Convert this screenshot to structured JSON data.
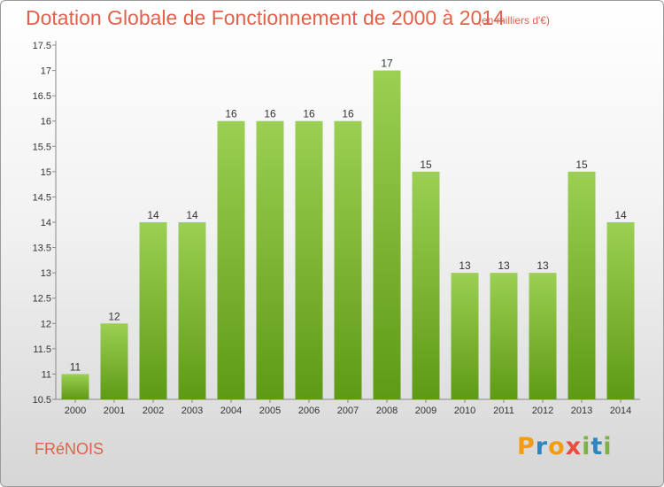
{
  "header": {
    "title": "Dotation Globale de Fonctionnement de 2000 à 2014",
    "subtitle": "(en milliers d'€)"
  },
  "footer": {
    "place": "FRéNOIS",
    "logo": "Proxiti"
  },
  "colors": {
    "bar_top": "#9bd052",
    "bar_bottom": "#5e9a16",
    "title": "#e0624b"
  },
  "chart_data": {
    "type": "bar",
    "categories": [
      "2000",
      "2001",
      "2002",
      "2003",
      "2004",
      "2005",
      "2006",
      "2007",
      "2008",
      "2009",
      "2010",
      "2011",
      "2012",
      "2013",
      "2014"
    ],
    "values": [
      11,
      12,
      14,
      14,
      16,
      16,
      16,
      16,
      17,
      15,
      13,
      13,
      13,
      15,
      14
    ],
    "data_labels": [
      "11",
      "12",
      "14",
      "14",
      "16",
      "16",
      "16",
      "16",
      "17",
      "15",
      "13",
      "13",
      "13",
      "15",
      "14"
    ],
    "ylim": [
      10.5,
      17.5
    ],
    "yticks": [
      10.5,
      11,
      11.5,
      12,
      12.5,
      13,
      13.5,
      14,
      14.5,
      15,
      15.5,
      16,
      16.5,
      17,
      17.5
    ],
    "ytick_labels": [
      "10.5",
      "11",
      "11.5",
      "12",
      "12.5",
      "13",
      "13.5",
      "14",
      "14.5",
      "15",
      "15.5",
      "16",
      "16.5",
      "17",
      "17.5"
    ],
    "grid": false,
    "title": "Dotation Globale de Fonctionnement de 2000 à 2014",
    "xlabel": "",
    "ylabel": ""
  }
}
